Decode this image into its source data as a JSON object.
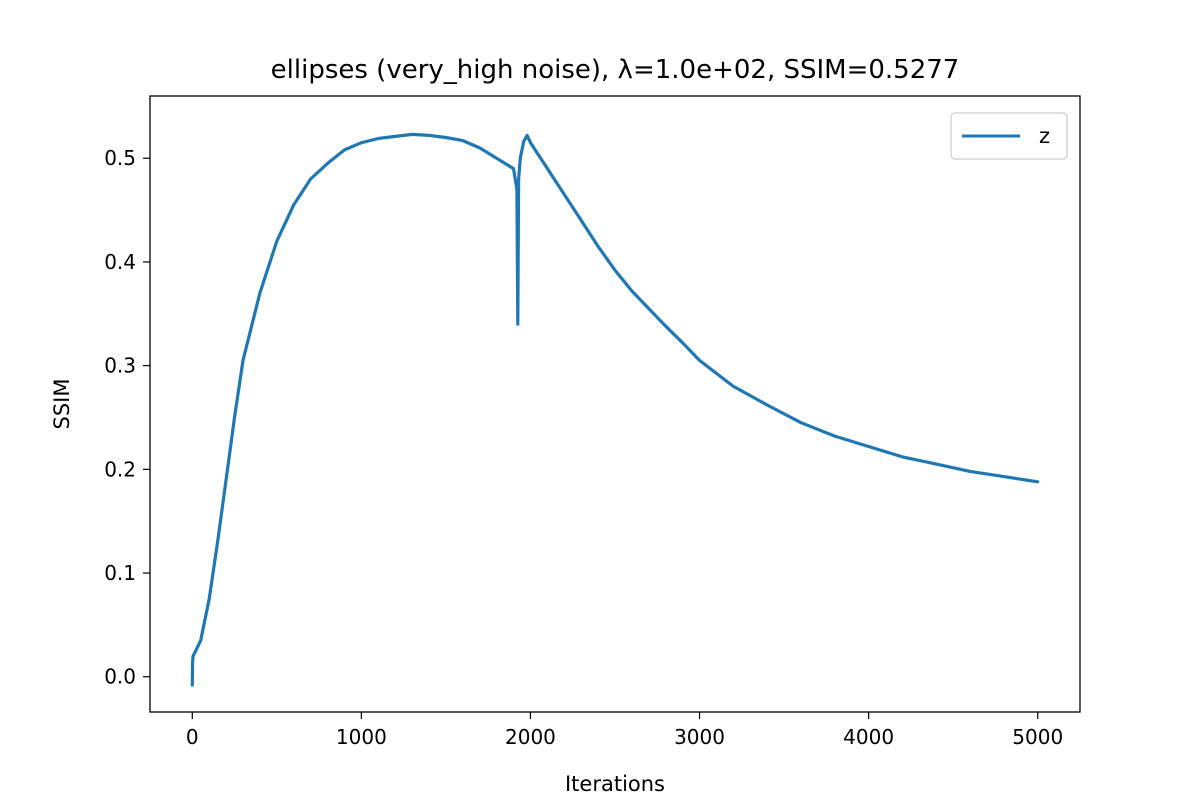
{
  "chart_data": {
    "type": "line",
    "title": "ellipses (very_high noise), λ=1.0e+02, SSIM=0.5277",
    "xlabel": "Iterations",
    "ylabel": "SSIM",
    "xlim": [
      -250,
      5250
    ],
    "ylim": [
      -0.034,
      0.56
    ],
    "xticks": [
      0,
      1000,
      2000,
      3000,
      4000,
      5000
    ],
    "xtick_labels": [
      "0",
      "1000",
      "2000",
      "3000",
      "4000",
      "5000"
    ],
    "yticks": [
      0.0,
      0.1,
      0.2,
      0.3,
      0.4,
      0.5
    ],
    "ytick_labels": [
      "0.0",
      "0.1",
      "0.2",
      "0.3",
      "0.4",
      "0.5"
    ],
    "grid": false,
    "legend_position": "top-right",
    "series": [
      {
        "name": "z",
        "color": "#1f77b4",
        "x": [
          0,
          2,
          5,
          20,
          50,
          100,
          150,
          200,
          250,
          300,
          400,
          500,
          600,
          700,
          800,
          900,
          1000,
          1100,
          1200,
          1300,
          1400,
          1500,
          1600,
          1700,
          1800,
          1900,
          1920,
          1925,
          1930,
          1940,
          1960,
          1980,
          2000,
          2100,
          2200,
          2300,
          2400,
          2500,
          2600,
          2700,
          2800,
          2900,
          3000,
          3200,
          3400,
          3600,
          3800,
          4000,
          4200,
          4400,
          4600,
          4800,
          5000
        ],
        "y": [
          -0.008,
          0.015,
          0.02,
          0.025,
          0.035,
          0.075,
          0.13,
          0.19,
          0.25,
          0.305,
          0.37,
          0.42,
          0.455,
          0.48,
          0.495,
          0.508,
          0.515,
          0.519,
          0.521,
          0.523,
          0.522,
          0.52,
          0.517,
          0.51,
          0.5,
          0.49,
          0.47,
          0.34,
          0.48,
          0.5,
          0.516,
          0.522,
          0.515,
          0.49,
          0.465,
          0.44,
          0.415,
          0.392,
          0.372,
          0.355,
          0.338,
          0.322,
          0.305,
          0.28,
          0.262,
          0.245,
          0.232,
          0.222,
          0.212,
          0.205,
          0.198,
          0.193,
          0.188
        ]
      }
    ]
  }
}
